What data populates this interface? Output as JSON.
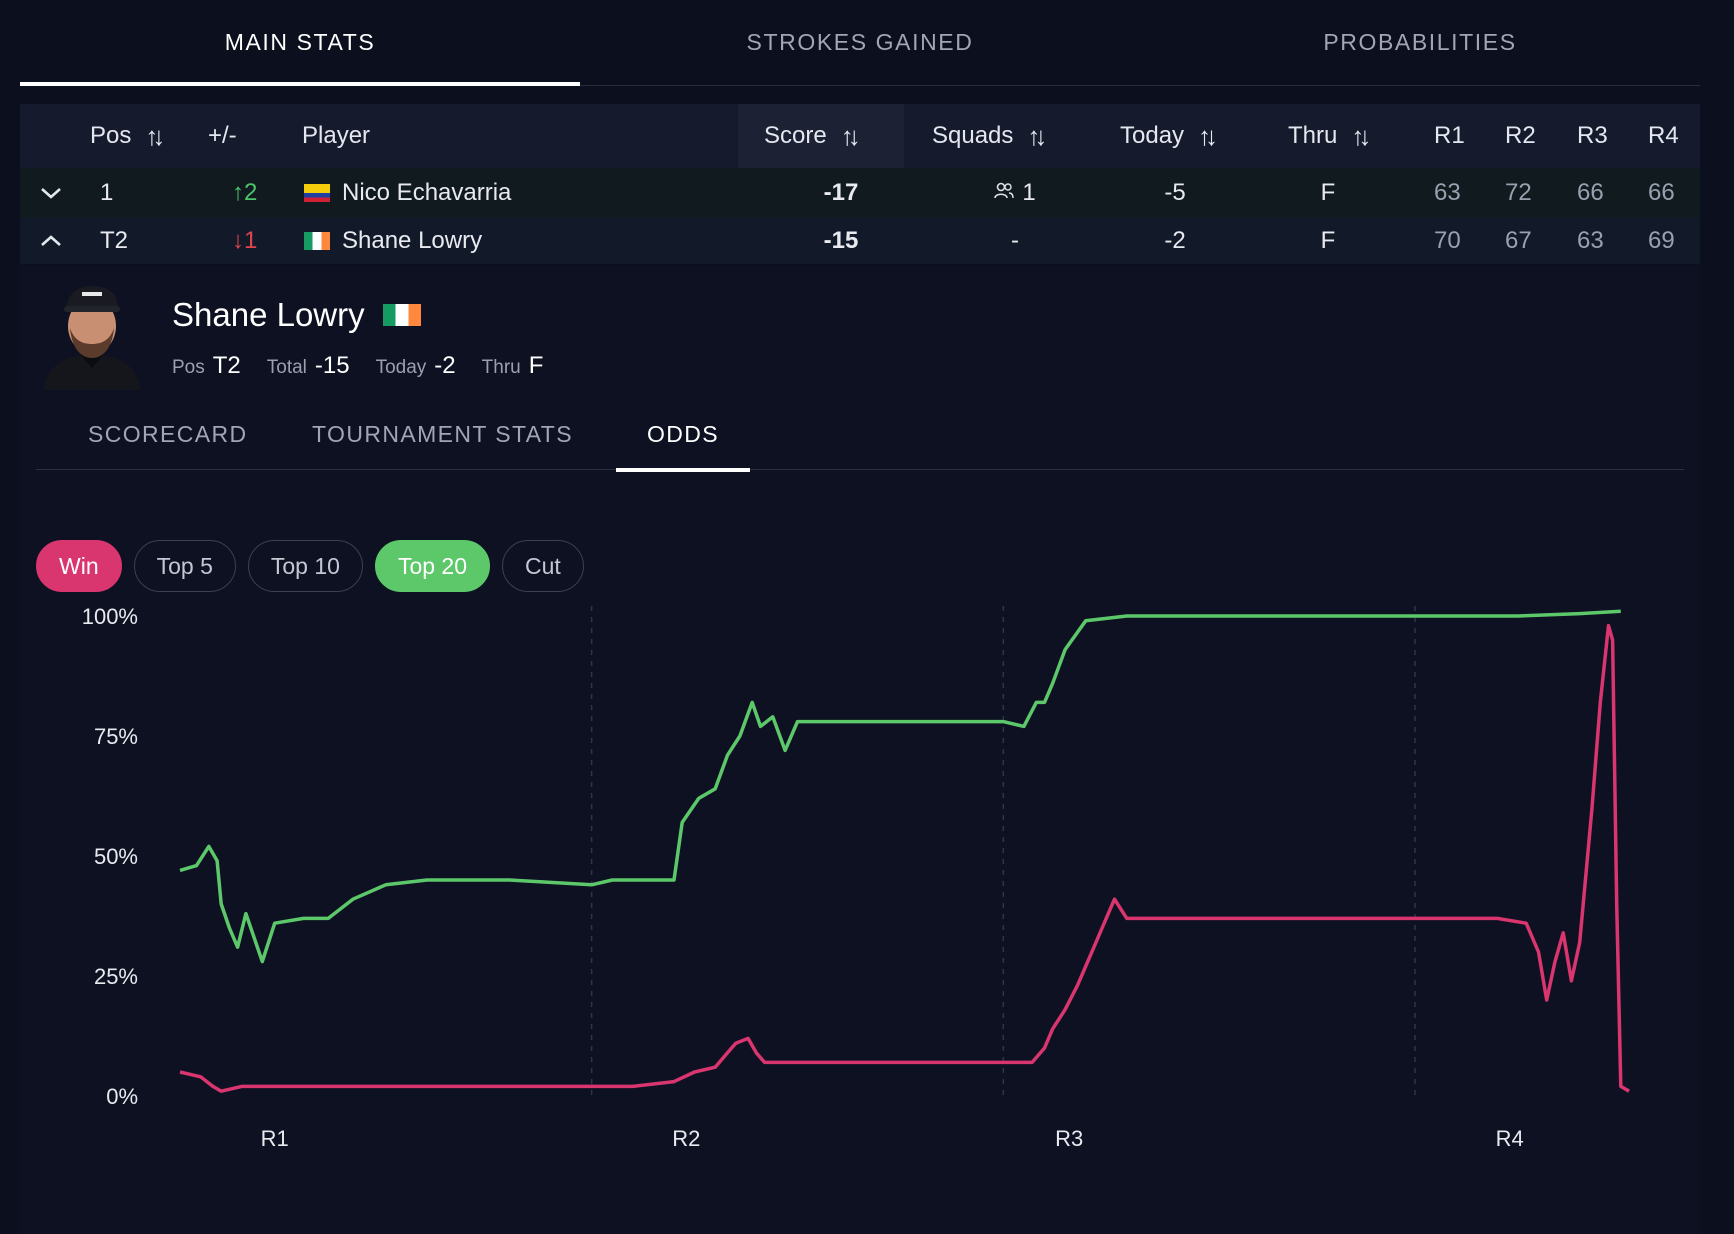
{
  "top_tabs": [
    {
      "label": "MAIN STATS",
      "active": true
    },
    {
      "label": "STROKES GAINED",
      "active": false
    },
    {
      "label": "PROBABILITIES",
      "active": false
    }
  ],
  "table": {
    "headers": {
      "pos": "Pos",
      "move": "+/-",
      "player": "Player",
      "score": "Score",
      "squads": "Squads",
      "today": "Today",
      "thru": "Thru",
      "r1": "R1",
      "r2": "R2",
      "r3": "R3",
      "r4": "R4"
    },
    "rows": [
      {
        "expand": "⌄",
        "pos": "1",
        "move": "↑2",
        "move_dir": "up",
        "flag": "colombia-flag",
        "player": "Nico Echavarria",
        "score": "-17",
        "squads": "1",
        "today": "-5",
        "thru": "F",
        "r1": "63",
        "r2": "72",
        "r3": "66",
        "r4": "66"
      },
      {
        "expand": "⌃",
        "pos": "T2",
        "move": "↓1",
        "move_dir": "down",
        "flag": "ireland-flag",
        "player": "Shane Lowry",
        "score": "-15",
        "squads": "-",
        "today": "-2",
        "thru": "F",
        "r1": "70",
        "r2": "67",
        "r3": "63",
        "r4": "69"
      }
    ]
  },
  "player": {
    "name": "Shane Lowry",
    "flag": "ireland-flag",
    "pos_label": "Pos",
    "pos": "T2",
    "total_label": "Total",
    "total": "-15",
    "today_label": "Today",
    "today": "-2",
    "thru_label": "Thru",
    "thru": "F"
  },
  "sub_tabs": [
    {
      "label": "SCORECARD",
      "active": false
    },
    {
      "label": "TOURNAMENT STATS",
      "active": false
    },
    {
      "label": "ODDS",
      "active": true
    }
  ],
  "pills": [
    {
      "label": "Win",
      "selected": true,
      "color": "#d9356f"
    },
    {
      "label": "Top 5",
      "selected": false
    },
    {
      "label": "Top 10",
      "selected": false
    },
    {
      "label": "Top 20",
      "selected": true,
      "color": "#5cc86a"
    },
    {
      "label": "Cut",
      "selected": false
    }
  ],
  "chart_data": {
    "type": "line",
    "title": "",
    "xlabel": "",
    "ylabel": "",
    "ylim": [
      0,
      100
    ],
    "xlim": [
      0,
      4
    ],
    "y_ticks": [
      "100%",
      "75%",
      "50%",
      "25%",
      "0%"
    ],
    "y_tick_values": [
      100,
      75,
      50,
      25,
      0
    ],
    "x_ticks": [
      "R1",
      "R2",
      "R3",
      "R4"
    ],
    "x_tick_values": [
      0.23,
      1.23,
      2.16,
      3.23
    ],
    "round_dividers": [
      1,
      2,
      3
    ],
    "series": [
      {
        "color": "#5cc86a",
        "points": [
          [
            0,
            47
          ],
          [
            0.04,
            48
          ],
          [
            0.07,
            52
          ],
          [
            0.09,
            49
          ],
          [
            0.1,
            40
          ],
          [
            0.12,
            35
          ],
          [
            0.14,
            31
          ],
          [
            0.16,
            38
          ],
          [
            0.2,
            28
          ],
          [
            0.23,
            36
          ],
          [
            0.3,
            37
          ],
          [
            0.36,
            37
          ],
          [
            0.42,
            41
          ],
          [
            0.5,
            44
          ],
          [
            0.6,
            45
          ],
          [
            0.7,
            45
          ],
          [
            0.8,
            45
          ],
          [
            0.9,
            44.5
          ],
          [
            1.0,
            44
          ],
          [
            1.05,
            45
          ],
          [
            1.15,
            45
          ],
          [
            1.2,
            45
          ],
          [
            1.22,
            57
          ],
          [
            1.26,
            62
          ],
          [
            1.3,
            64
          ],
          [
            1.33,
            71
          ],
          [
            1.36,
            75
          ],
          [
            1.39,
            82
          ],
          [
            1.41,
            77
          ],
          [
            1.44,
            79
          ],
          [
            1.47,
            72
          ],
          [
            1.5,
            78
          ],
          [
            1.6,
            78
          ],
          [
            1.8,
            78
          ],
          [
            2.0,
            78
          ],
          [
            2.05,
            77
          ],
          [
            2.08,
            82
          ],
          [
            2.1,
            82
          ],
          [
            2.12,
            86
          ],
          [
            2.15,
            93
          ],
          [
            2.2,
            99
          ],
          [
            2.3,
            100
          ],
          [
            2.6,
            100
          ],
          [
            3.0,
            100
          ],
          [
            3.25,
            100
          ],
          [
            3.4,
            100.5
          ],
          [
            3.5,
            101
          ]
        ]
      },
      {
        "color": "#d9356f",
        "points": [
          [
            0,
            5
          ],
          [
            0.05,
            4
          ],
          [
            0.08,
            2
          ],
          [
            0.1,
            1
          ],
          [
            0.15,
            2
          ],
          [
            0.25,
            2
          ],
          [
            0.4,
            2
          ],
          [
            0.6,
            2
          ],
          [
            0.8,
            2
          ],
          [
            1.0,
            2
          ],
          [
            1.1,
            2
          ],
          [
            1.2,
            3
          ],
          [
            1.25,
            5
          ],
          [
            1.3,
            6
          ],
          [
            1.33,
            9
          ],
          [
            1.35,
            11
          ],
          [
            1.38,
            12
          ],
          [
            1.4,
            9
          ],
          [
            1.42,
            7
          ],
          [
            1.45,
            7
          ],
          [
            1.5,
            7
          ],
          [
            1.7,
            7
          ],
          [
            1.9,
            7
          ],
          [
            2.0,
            7
          ],
          [
            2.07,
            7
          ],
          [
            2.1,
            10
          ],
          [
            2.12,
            14
          ],
          [
            2.15,
            18
          ],
          [
            2.18,
            23
          ],
          [
            2.21,
            29
          ],
          [
            2.24,
            35
          ],
          [
            2.27,
            41
          ],
          [
            2.3,
            37
          ],
          [
            2.4,
            37
          ],
          [
            2.6,
            37
          ],
          [
            2.8,
            37
          ],
          [
            3.0,
            37
          ],
          [
            3.2,
            37
          ],
          [
            3.27,
            36
          ],
          [
            3.3,
            30
          ],
          [
            3.32,
            20
          ],
          [
            3.34,
            28
          ],
          [
            3.36,
            34
          ],
          [
            3.38,
            24
          ],
          [
            3.4,
            32
          ],
          [
            3.43,
            60
          ],
          [
            3.45,
            82
          ],
          [
            3.47,
            98
          ],
          [
            3.48,
            95
          ],
          [
            3.49,
            40
          ],
          [
            3.5,
            2
          ],
          [
            3.52,
            1
          ]
        ]
      }
    ]
  }
}
